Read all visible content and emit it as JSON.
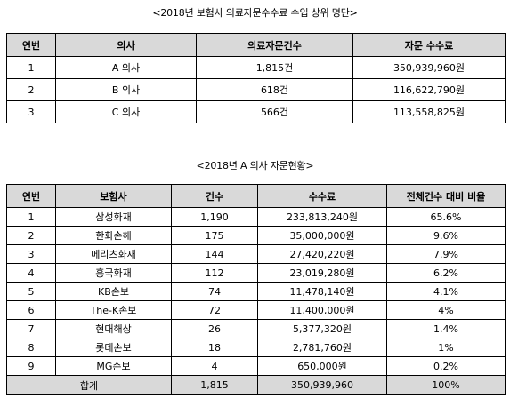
{
  "section1": {
    "title": "<2018년 보험사 의료자문수수료 수입 상위 명단>",
    "headers": [
      "연번",
      "의사",
      "의료자문건수",
      "자문 수수료"
    ],
    "rows": [
      [
        "1",
        "A 의사",
        "1,815건",
        "350,939,960원"
      ],
      [
        "2",
        "B 의사",
        "618건",
        "116,622,790원"
      ],
      [
        "3",
        "C 의사",
        "566건",
        "113,558,825원"
      ]
    ]
  },
  "section2": {
    "title": "<2018년 A 의사 자문현황>",
    "headers": [
      "연번",
      "보험사",
      "건수",
      "수수료",
      "전체건수 대비 비율"
    ],
    "rows": [
      [
        "1",
        "삼성화재",
        "1,190",
        "233,813,240원",
        "65.6%"
      ],
      [
        "2",
        "한화손해",
        "175",
        "35,000,000원",
        "9.6%"
      ],
      [
        "3",
        "메리츠화재",
        "144",
        "27,420,220원",
        "7.9%"
      ],
      [
        "4",
        "흥국화재",
        "112",
        "23,019,280원",
        "6.2%"
      ],
      [
        "5",
        "KB손보",
        "74",
        "11,478,140원",
        "4.1%"
      ],
      [
        "6",
        "The-K손보",
        "72",
        "11,400,000원",
        "4%"
      ],
      [
        "7",
        "현대해상",
        "26",
        "5,377,320원",
        "1.4%"
      ],
      [
        "8",
        "롯데손보",
        "18",
        "2,781,760원",
        "1%"
      ],
      [
        "9",
        "MG손보",
        "4",
        "650,000원",
        "0.2%"
      ]
    ],
    "total": {
      "label": "합계",
      "count": "1,815",
      "fee": "350,939,960",
      "ratio": "100%"
    }
  }
}
